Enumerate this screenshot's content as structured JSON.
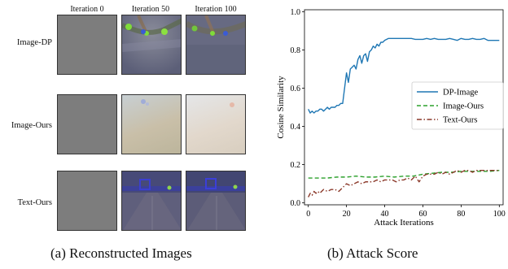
{
  "panel_a": {
    "columns": [
      "Iteration 0",
      "Iteration 50",
      "Iteration 100"
    ],
    "rows": [
      "Image-DP",
      "Image-Ours",
      "Text-Ours"
    ],
    "caption": "(a) Reconstructed Images"
  },
  "panel_b": {
    "caption": "(b) Attack Score"
  },
  "chart_data": {
    "type": "line",
    "xlabel": "Attack Iterations",
    "ylabel": "Cosine Similarity",
    "xlim": [
      -2,
      102
    ],
    "ylim": [
      -0.01,
      1.01
    ],
    "xticks": [
      0,
      20,
      40,
      60,
      80,
      100
    ],
    "yticks": [
      0.0,
      0.2,
      0.4,
      0.6,
      0.8,
      1.0
    ],
    "xtick_labels": [
      "0",
      "20",
      "40",
      "60",
      "80",
      "100"
    ],
    "ytick_labels": [
      "0.0",
      "0.2",
      "0.4",
      "0.6",
      "0.8",
      "1.0"
    ],
    "grid": false,
    "legend_position": "center-right",
    "series": [
      {
        "name": "DP-Image",
        "color": "#1f77b4",
        "style": "solid",
        "x": [
          0,
          1,
          2,
          3,
          4,
          5,
          6,
          7,
          8,
          9,
          10,
          11,
          12,
          13,
          14,
          15,
          16,
          17,
          18,
          19,
          20,
          21,
          22,
          23,
          24,
          25,
          26,
          27,
          28,
          29,
          30,
          31,
          32,
          33,
          34,
          35,
          36,
          37,
          38,
          39,
          40,
          42,
          44,
          46,
          48,
          50,
          52,
          54,
          56,
          58,
          60,
          62,
          64,
          66,
          68,
          70,
          72,
          74,
          76,
          78,
          80,
          82,
          84,
          86,
          88,
          90,
          92,
          94,
          96,
          98,
          100
        ],
        "y": [
          0.49,
          0.47,
          0.48,
          0.47,
          0.48,
          0.48,
          0.49,
          0.49,
          0.48,
          0.49,
          0.5,
          0.49,
          0.5,
          0.5,
          0.5,
          0.51,
          0.51,
          0.52,
          0.52,
          0.6,
          0.68,
          0.63,
          0.7,
          0.71,
          0.72,
          0.7,
          0.75,
          0.77,
          0.73,
          0.77,
          0.78,
          0.74,
          0.79,
          0.8,
          0.82,
          0.81,
          0.83,
          0.82,
          0.84,
          0.84,
          0.85,
          0.86,
          0.86,
          0.86,
          0.86,
          0.86,
          0.86,
          0.86,
          0.855,
          0.855,
          0.855,
          0.86,
          0.855,
          0.86,
          0.855,
          0.855,
          0.855,
          0.86,
          0.855,
          0.85,
          0.86,
          0.855,
          0.855,
          0.86,
          0.855,
          0.855,
          0.86,
          0.85,
          0.85,
          0.85,
          0.85
        ]
      },
      {
        "name": "Image-Ours",
        "color": "#2ca02c",
        "style": "dashed",
        "x": [
          0,
          5,
          10,
          15,
          20,
          25,
          30,
          35,
          40,
          45,
          50,
          55,
          60,
          65,
          70,
          75,
          80,
          85,
          90,
          95,
          100
        ],
        "y": [
          0.13,
          0.13,
          0.13,
          0.135,
          0.135,
          0.14,
          0.135,
          0.135,
          0.14,
          0.135,
          0.14,
          0.14,
          0.15,
          0.155,
          0.16,
          0.16,
          0.165,
          0.165,
          0.165,
          0.165,
          0.17
        ]
      },
      {
        "name": "Text-Ours",
        "color": "#8c3a2b",
        "style": "dashdot",
        "x": [
          0,
          1,
          2,
          3,
          4,
          5,
          6,
          8,
          10,
          12,
          14,
          16,
          18,
          20,
          22,
          24,
          26,
          28,
          30,
          32,
          34,
          36,
          38,
          40,
          42,
          44,
          46,
          48,
          50,
          52,
          54,
          56,
          58,
          60,
          62,
          64,
          66,
          68,
          70,
          72,
          74,
          76,
          78,
          80,
          82,
          84,
          86,
          88,
          90,
          92,
          94,
          96,
          98,
          100
        ],
        "y": [
          0.03,
          0.05,
          0.04,
          0.06,
          0.05,
          0.06,
          0.05,
          0.07,
          0.06,
          0.07,
          0.07,
          0.06,
          0.08,
          0.1,
          0.09,
          0.1,
          0.11,
          0.1,
          0.11,
          0.11,
          0.11,
          0.12,
          0.11,
          0.12,
          0.12,
          0.12,
          0.11,
          0.12,
          0.12,
          0.13,
          0.12,
          0.14,
          0.11,
          0.14,
          0.15,
          0.15,
          0.15,
          0.16,
          0.15,
          0.16,
          0.15,
          0.16,
          0.17,
          0.16,
          0.17,
          0.17,
          0.16,
          0.17,
          0.17,
          0.17,
          0.17,
          0.17,
          0.17,
          0.17
        ]
      }
    ]
  }
}
